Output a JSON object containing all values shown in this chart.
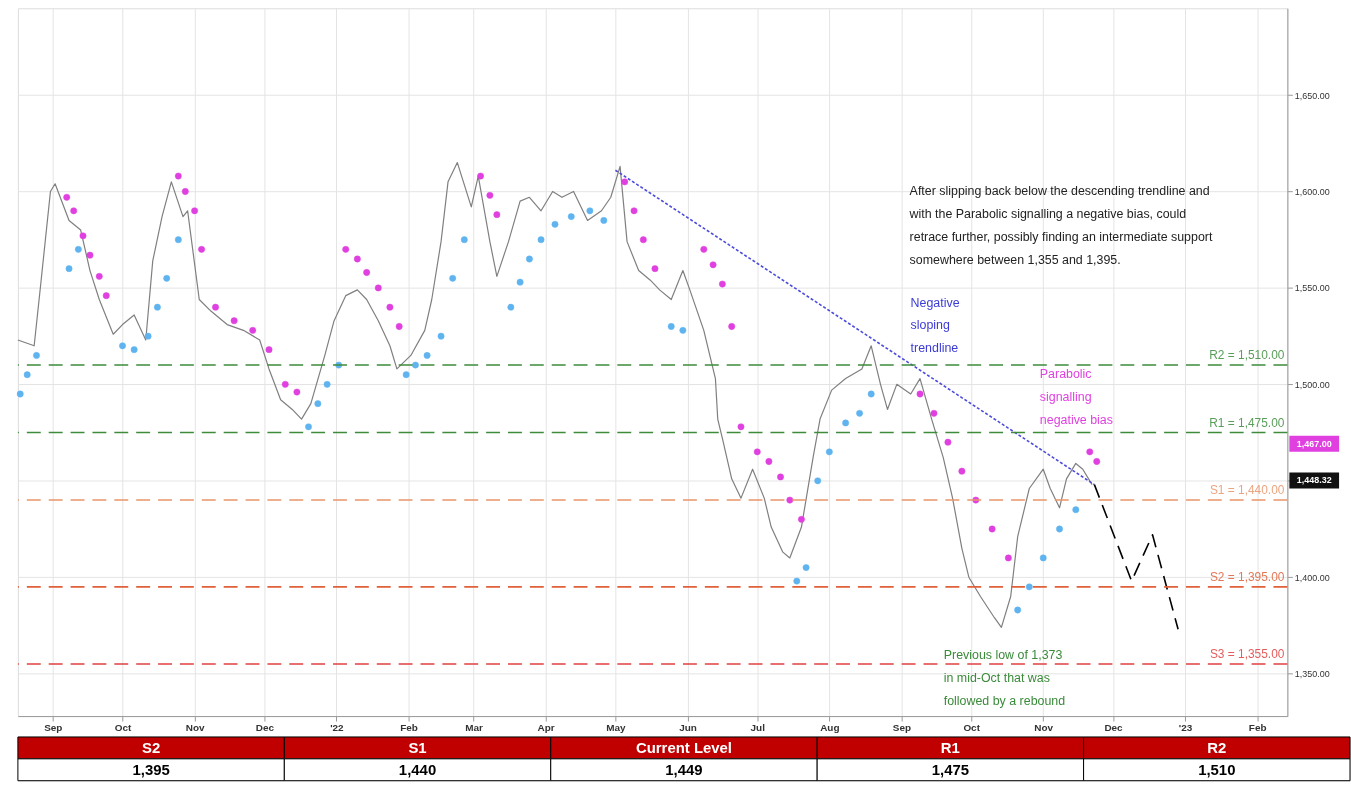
{
  "chart_data": [
    {
      "type": "line",
      "xlim": [
        "2021-08-17",
        "2023-02-14"
      ],
      "xticks": [
        {
          "value": "2021-09-01",
          "label": "Sep"
        },
        {
          "value": "2021-10-01",
          "label": "Oct"
        },
        {
          "value": "2021-11-01",
          "label": "Nov"
        },
        {
          "value": "2021-12-01",
          "label": "Dec"
        },
        {
          "value": "2022-01-01",
          "label": "'22"
        },
        {
          "value": "2022-02-01",
          "label": "Feb"
        },
        {
          "value": "2022-03-01",
          "label": "Mar"
        },
        {
          "value": "2022-04-01",
          "label": "Apr"
        },
        {
          "value": "2022-05-01",
          "label": "May"
        },
        {
          "value": "2022-06-01",
          "label": "Jun"
        },
        {
          "value": "2022-07-01",
          "label": "Jul"
        },
        {
          "value": "2022-08-01",
          "label": "Aug"
        },
        {
          "value": "2022-09-01",
          "label": "Sep"
        },
        {
          "value": "2022-10-01",
          "label": "Oct"
        },
        {
          "value": "2022-11-01",
          "label": "Nov"
        },
        {
          "value": "2022-12-01",
          "label": "Dec"
        },
        {
          "value": "2023-01-01",
          "label": "'23"
        },
        {
          "value": "2023-02-01",
          "label": "Feb"
        }
      ],
      "ylim": [
        1328,
        1695
      ],
      "yticks": [
        {
          "value": 1350,
          "label": "1,350.00"
        },
        {
          "value": 1400,
          "label": "1,400.00"
        },
        {
          "value": 1450,
          "label": null
        },
        {
          "value": 1500,
          "label": "1,500.00"
        },
        {
          "value": 1550,
          "label": "1,550.00"
        },
        {
          "value": 1600,
          "label": "1,600.00"
        },
        {
          "value": 1650,
          "label": "1,650.00"
        }
      ],
      "grid": true,
      "series": [
        {
          "color": "#7f7f7f",
          "line_style": "solid",
          "x": [
            "2021-08-17",
            "2021-08-24",
            "2021-08-27",
            "2021-08-31",
            "2021-09-02",
            "2021-09-08",
            "2021-09-13",
            "2021-09-17",
            "2021-09-21",
            "2021-09-27",
            "2021-10-01",
            "2021-10-06",
            "2021-10-11",
            "2021-10-14",
            "2021-10-18",
            "2021-10-22",
            "2021-10-27",
            "2021-10-29",
            "2021-11-03",
            "2021-11-08",
            "2021-11-15",
            "2021-11-22",
            "2021-11-29",
            "2021-12-03",
            "2021-12-08",
            "2021-12-13",
            "2021-12-17",
            "2021-12-21",
            "2021-12-27",
            "2021-12-31",
            "2022-01-05",
            "2022-01-10",
            "2022-01-14",
            "2022-01-19",
            "2022-01-24",
            "2022-01-27",
            "2022-02-02",
            "2022-02-08",
            "2022-02-11",
            "2022-02-15",
            "2022-02-18",
            "2022-02-22",
            "2022-02-28",
            "2022-03-03",
            "2022-03-08",
            "2022-03-11",
            "2022-03-16",
            "2022-03-21",
            "2022-03-25",
            "2022-03-30",
            "2022-04-04",
            "2022-04-08",
            "2022-04-13",
            "2022-04-19",
            "2022-04-25",
            "2022-04-29",
            "2022-05-03",
            "2022-05-06",
            "2022-05-11",
            "2022-05-16",
            "2022-05-20",
            "2022-05-25",
            "2022-05-30",
            "2022-06-02",
            "2022-06-08",
            "2022-06-13",
            "2022-06-14",
            "2022-06-16",
            "2022-06-20",
            "2022-06-24",
            "2022-06-29",
            "2022-07-04",
            "2022-07-07",
            "2022-07-12",
            "2022-07-15",
            "2022-07-20",
            "2022-07-25",
            "2022-07-28",
            "2022-08-02",
            "2022-08-08",
            "2022-08-15",
            "2022-08-19",
            "2022-08-23",
            "2022-08-26",
            "2022-08-30",
            "2022-09-05",
            "2022-09-09",
            "2022-09-14",
            "2022-09-19",
            "2022-09-23",
            "2022-09-27",
            "2022-09-30",
            "2022-10-05",
            "2022-10-11",
            "2022-10-14",
            "2022-10-18",
            "2022-10-21",
            "2022-10-26",
            "2022-11-01",
            "2022-11-04",
            "2022-11-08",
            "2022-11-11",
            "2022-11-15",
            "2022-11-18",
            "2022-11-22"
          ],
          "values": [
            1523,
            1520,
            1554,
            1600,
            1604,
            1585,
            1580,
            1559,
            1544,
            1526,
            1531,
            1536,
            1523,
            1564,
            1587,
            1605,
            1587,
            1590,
            1544,
            1538,
            1531,
            1528,
            1523,
            1508,
            1492,
            1487,
            1482,
            1490,
            1515,
            1533,
            1546,
            1549,
            1544,
            1533,
            1520,
            1508,
            1515,
            1528,
            1544,
            1574,
            1605,
            1615,
            1592,
            1608,
            1574,
            1556,
            1574,
            1595,
            1597,
            1590,
            1600,
            1597,
            1600,
            1585,
            1590,
            1597,
            1613,
            1574,
            1559,
            1554,
            1549,
            1544,
            1559,
            1549,
            1528,
            1503,
            1482,
            1472,
            1451,
            1441,
            1456,
            1441,
            1426,
            1413,
            1410,
            1426,
            1462,
            1482,
            1497,
            1503,
            1508,
            1520,
            1500,
            1487,
            1500,
            1495,
            1503,
            1482,
            1462,
            1441,
            1415,
            1400,
            1390,
            1379,
            1374,
            1390,
            1421,
            1446,
            1456,
            1446,
            1436,
            1451,
            1459,
            1456,
            1448
          ]
        },
        {
          "type": "scatter",
          "color": "#e040e0",
          "marker": "circle",
          "x": [
            "2021-09-07",
            "2021-09-10",
            "2021-09-14",
            "2021-09-17",
            "2021-09-21",
            "2021-09-24",
            "2021-10-25",
            "2021-10-28",
            "2021-11-01",
            "2021-11-04",
            "2021-11-10",
            "2021-11-18",
            "2021-11-26",
            "2021-12-03",
            "2021-12-10",
            "2021-12-15",
            "2022-01-05",
            "2022-01-10",
            "2022-01-14",
            "2022-01-19",
            "2022-01-24",
            "2022-01-28",
            "2022-03-04",
            "2022-03-08",
            "2022-03-11",
            "2022-05-05",
            "2022-05-09",
            "2022-05-13",
            "2022-05-18",
            "2022-06-08",
            "2022-06-12",
            "2022-06-16",
            "2022-06-20",
            "2022-06-24",
            "2022-07-01",
            "2022-07-06",
            "2022-07-11",
            "2022-07-15",
            "2022-07-20",
            "2022-09-09",
            "2022-09-15",
            "2022-09-21",
            "2022-09-27",
            "2022-10-03",
            "2022-10-10",
            "2022-10-17",
            "2022-11-21",
            "2022-11-24"
          ],
          "values": [
            1597,
            1590,
            1577,
            1567,
            1556,
            1546,
            1608,
            1600,
            1590,
            1570,
            1540,
            1533,
            1528,
            1518,
            1500,
            1496,
            1570,
            1565,
            1558,
            1550,
            1540,
            1530,
            1608,
            1598,
            1588,
            1605,
            1590,
            1575,
            1560,
            1570,
            1562,
            1552,
            1530,
            1478,
            1465,
            1460,
            1452,
            1440,
            1430,
            1495,
            1485,
            1470,
            1455,
            1440,
            1425,
            1410,
            1465,
            1460
          ]
        },
        {
          "type": "scatter",
          "color": "#5fb4f0",
          "marker": "circle",
          "x": [
            "2021-08-18",
            "2021-08-21",
            "2021-08-25",
            "2021-09-08",
            "2021-09-12",
            "2021-10-01",
            "2021-10-06",
            "2021-10-12",
            "2021-10-16",
            "2021-10-20",
            "2021-10-25",
            "2021-12-20",
            "2021-12-24",
            "2021-12-28",
            "2022-01-02",
            "2022-01-31",
            "2022-02-04",
            "2022-02-09",
            "2022-02-15",
            "2022-02-20",
            "2022-02-25",
            "2022-03-17",
            "2022-03-21",
            "2022-03-25",
            "2022-03-30",
            "2022-04-05",
            "2022-04-12",
            "2022-04-20",
            "2022-04-26",
            "2022-05-25",
            "2022-05-30",
            "2022-07-18",
            "2022-07-22",
            "2022-07-27",
            "2022-08-01",
            "2022-08-08",
            "2022-08-14",
            "2022-08-19",
            "2022-10-21",
            "2022-10-26",
            "2022-11-01",
            "2022-11-08",
            "2022-11-15"
          ],
          "values": [
            1495,
            1505,
            1515,
            1560,
            1570,
            1520,
            1518,
            1525,
            1540,
            1555,
            1575,
            1478,
            1490,
            1500,
            1510,
            1505,
            1510,
            1515,
            1525,
            1555,
            1575,
            1540,
            1553,
            1565,
            1575,
            1583,
            1587,
            1590,
            1585,
            1530,
            1528,
            1398,
            1405,
            1450,
            1465,
            1480,
            1485,
            1495,
            1383,
            1395,
            1410,
            1425,
            1435
          ]
        },
        {
          "type": "line",
          "color": "#4b4bdc",
          "line_style": "dotted",
          "x": [
            "2022-05-01",
            "2022-11-23"
          ],
          "values": [
            1611,
            1448
          ]
        },
        {
          "type": "line",
          "color": "#000000",
          "line_style": "dashed",
          "x": [
            "2022-11-23",
            "2022-12-09",
            "2022-12-18",
            "2022-12-29"
          ],
          "values": [
            1448,
            1398,
            1422,
            1373
          ]
        }
      ],
      "ref_lines": [
        {
          "axis": "y",
          "value": 1510,
          "label": "R2 = 1,510.00",
          "color": "#3c8c3c",
          "line_style": "dashed"
        },
        {
          "axis": "y",
          "value": 1475,
          "label": "R1 = 1,475.00",
          "color": "#3c8c3c",
          "line_style": "dashed"
        },
        {
          "axis": "y",
          "value": 1440,
          "label": "S1 = 1,440.00",
          "color": "#e8956a",
          "line_style": "dashed"
        },
        {
          "axis": "y",
          "value": 1395,
          "label": "S2 = 1,395.00",
          "color": "#e0603a",
          "line_style": "dashed"
        },
        {
          "axis": "y",
          "value": 1355,
          "label": "S3 = 1,355.00",
          "color": "#e04040",
          "line_style": "dashed"
        }
      ],
      "annotations": [
        "After slipping back below the descending trendline and with the Parabolic signalling a negative bias, could retrace further, possibly finding an intermediate support somewhere between 1,355 and 1,395.",
        "Negative sloping trendline",
        "Parabolic signalling negative bias",
        {
          "text": "Previous low of 1,373 in mid-Oct that was followed by a rebound",
          "x": "2022-10-14",
          "y": 1373
        },
        "1,467.00",
        "1,448.32"
      ]
    },
    {
      "type": "other",
      "categories": [
        "S2",
        "S1",
        "Current Level",
        "R1",
        "R2"
      ],
      "value_labels": [
        "1,395",
        "1,440",
        "1,449",
        "1,475",
        "1,510"
      ],
      "color": "#c00000"
    }
  ]
}
